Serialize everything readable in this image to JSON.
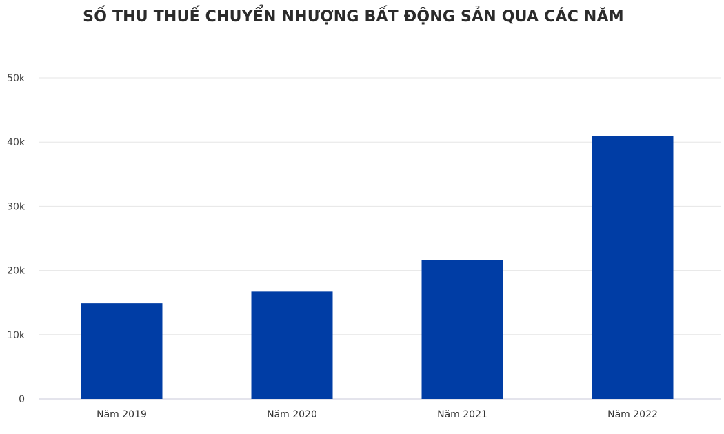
{
  "chart_data": {
    "type": "bar",
    "title": "SỐ THU THUẾ CHUYỂN NHƯỢNG BẤT ĐỘNG SẢN QUA CÁC NĂM",
    "categories": [
      "Năm 2019",
      "Năm 2020",
      "Năm 2021",
      "Năm 2022"
    ],
    "values": [
      14900,
      16700,
      21600,
      40900
    ],
    "ylim": [
      0,
      50000
    ],
    "yticks": [
      0,
      10000,
      20000,
      30000,
      40000,
      50000
    ],
    "ytick_labels": [
      "0",
      "10k",
      "20k",
      "30k",
      "40k",
      "50k"
    ],
    "grid": true,
    "bar_color": "#003da5",
    "xlabel": "",
    "ylabel": ""
  }
}
